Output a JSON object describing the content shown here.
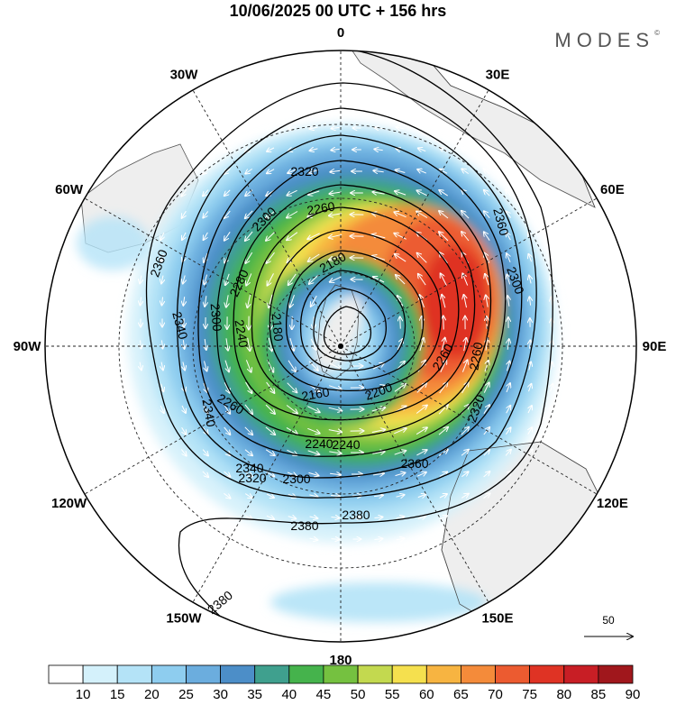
{
  "title": "10/06/2025  00 UTC  + 156 hrs",
  "brand": "MODES",
  "brand_mark": "©",
  "longitude_labels": [
    {
      "label": "0",
      "lon": 0
    },
    {
      "label": "30E",
      "lon": 30
    },
    {
      "label": "60E",
      "lon": 60
    },
    {
      "label": "90E",
      "lon": 90
    },
    {
      "label": "120E",
      "lon": 120
    },
    {
      "label": "150E",
      "lon": 150
    },
    {
      "label": "180",
      "lon": 180
    },
    {
      "label": "150W",
      "lon": -150
    },
    {
      "label": "120W",
      "lon": -120
    },
    {
      "label": "90W",
      "lon": -90
    },
    {
      "label": "60W",
      "lon": -60
    },
    {
      "label": "30W",
      "lon": -30
    }
  ],
  "contour_labels": [
    "2380",
    "2380",
    "2380",
    "2360",
    "2360",
    "2360",
    "2340",
    "2340",
    "2340",
    "2320",
    "2320",
    "2320",
    "2300",
    "2300",
    "2300",
    "2280",
    "2260",
    "2260",
    "2260",
    "2260",
    "2240",
    "2240",
    "2240",
    "2200",
    "2180",
    "2180",
    "2160",
    "2300"
  ],
  "colorbar": {
    "labels": [
      "10",
      "15",
      "20",
      "25",
      "30",
      "35",
      "40",
      "45",
      "50",
      "55",
      "60",
      "65",
      "70",
      "75",
      "80",
      "85",
      "90"
    ],
    "colors": [
      "#ffffff",
      "#d4f1fb",
      "#b4e3f7",
      "#8ecdef",
      "#6badde",
      "#4c8ec8",
      "#3fa08e",
      "#45b34c",
      "#75c140",
      "#c3d94f",
      "#f5e04e",
      "#f7b441",
      "#f48b3a",
      "#ec5b30",
      "#df3324",
      "#c81e25",
      "#a0171c"
    ]
  },
  "reference_vector": {
    "label": "50"
  },
  "colors": {
    "contour": "#000000",
    "land": "#eeeeee",
    "arrow": "#ffffff"
  }
}
